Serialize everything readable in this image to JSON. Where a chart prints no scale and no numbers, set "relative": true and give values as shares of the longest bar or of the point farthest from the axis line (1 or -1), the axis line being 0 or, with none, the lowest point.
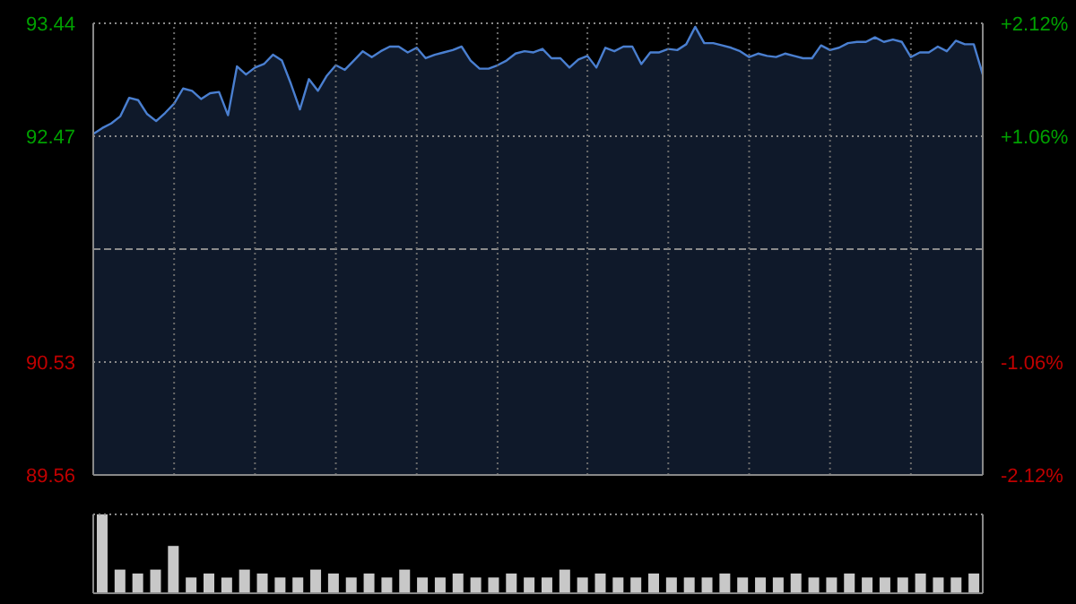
{
  "chart_data": [
    {
      "type": "area",
      "categories": [
        null,
        null,
        null,
        null,
        null,
        null,
        null,
        null,
        null,
        null,
        null,
        null,
        null,
        null,
        null,
        null,
        null,
        null,
        null,
        null,
        null,
        null,
        null,
        null,
        null,
        null,
        null,
        null,
        null,
        null,
        null,
        null,
        null,
        null,
        null,
        null,
        null,
        null,
        null,
        null,
        null,
        null,
        null,
        null,
        null,
        null,
        null,
        null,
        null,
        null,
        null,
        null,
        null,
        null,
        null,
        null,
        null,
        null,
        null,
        null,
        null,
        null,
        null,
        null,
        null,
        null,
        null,
        null,
        null,
        null,
        null,
        null,
        null,
        null,
        null,
        null,
        null,
        null,
        null,
        null,
        null,
        null,
        null,
        null,
        null,
        null,
        null,
        null,
        null,
        null,
        null,
        null,
        null,
        null,
        null,
        null,
        null,
        null,
        null,
        null
      ],
      "series": [
        {
          "color": "#4a7fd0",
          "values": [
            92.49,
            92.54,
            92.58,
            92.64,
            92.8,
            92.78,
            92.66,
            92.6,
            92.67,
            92.75,
            92.88,
            92.86,
            92.79,
            92.84,
            92.85,
            92.65,
            93.07,
            93.0,
            93.06,
            93.09,
            93.17,
            93.12,
            92.92,
            92.7,
            92.96,
            92.86,
            92.99,
            93.08,
            93.04,
            93.12,
            93.2,
            93.15,
            93.2,
            93.24,
            93.24,
            93.19,
            93.23,
            93.14,
            93.17,
            93.19,
            93.21,
            93.24,
            93.12,
            93.05,
            93.05,
            93.08,
            93.12,
            93.18,
            93.2,
            93.19,
            93.22,
            93.14,
            93.14,
            93.06,
            93.13,
            93.16,
            93.06,
            93.23,
            93.2,
            93.24,
            93.24,
            93.09,
            93.19,
            93.19,
            93.22,
            93.21,
            93.26,
            93.41,
            93.27,
            93.27,
            93.25,
            93.23,
            93.2,
            93.15,
            93.18,
            93.16,
            93.15,
            93.18,
            93.16,
            93.14,
            93.14,
            93.25,
            93.21,
            93.23,
            93.27,
            93.28,
            93.28,
            93.32,
            93.28,
            93.3,
            93.28,
            93.15,
            93.19,
            93.19,
            93.24,
            93.2,
            93.29,
            93.26,
            93.26,
            93.0
          ]
        }
      ],
      "ylim": [
        89.56,
        93.44
      ],
      "yticks": [
        89.56,
        90.53,
        {
          "value": 91.5,
          "label": null
        },
        92.47,
        93.44
      ],
      "y2lim": [
        -2.12,
        2.12
      ],
      "y2ticks": [
        {
          "value": -2.12,
          "label": "-2.12%"
        },
        {
          "value": -1.06,
          "label": "-1.06%"
        },
        {
          "value": 1.06,
          "label": "+1.06%"
        },
        {
          "value": 2.12,
          "label": "+2.12%"
        }
      ],
      "grid": true
    },
    {
      "type": "bar",
      "relative": true,
      "categories": [
        null,
        null,
        null,
        null,
        null,
        null,
        null,
        null,
        null,
        null,
        null,
        null,
        null,
        null,
        null,
        null,
        null,
        null,
        null,
        null,
        null,
        null,
        null,
        null,
        null,
        null,
        null,
        null,
        null,
        null,
        null,
        null,
        null,
        null,
        null,
        null,
        null,
        null,
        null,
        null,
        null,
        null,
        null,
        null,
        null,
        null,
        null,
        null,
        null,
        null
      ],
      "series": [
        {
          "color": "#c8c8c8",
          "values": [
            1,
            0.3,
            0.25,
            0.3,
            0.6,
            0.2,
            0.25,
            0.2,
            0.3,
            0.25,
            0.2,
            0.2,
            0.3,
            0.25,
            0.2,
            0.25,
            0.2,
            0.3,
            0.2,
            0.2,
            0.25,
            0.2,
            0.2,
            0.25,
            0.2,
            0.2,
            0.3,
            0.2,
            0.25,
            0.2,
            0.2,
            0.25,
            0.2,
            0.2,
            0.2,
            0.25,
            0.2,
            0.2,
            0.2,
            0.25,
            0.2,
            0.2,
            0.25,
            0.2,
            0.2,
            0.2,
            0.25,
            0.2,
            0.2,
            0.25
          ]
        }
      ],
      "grid": "y"
    }
  ]
}
